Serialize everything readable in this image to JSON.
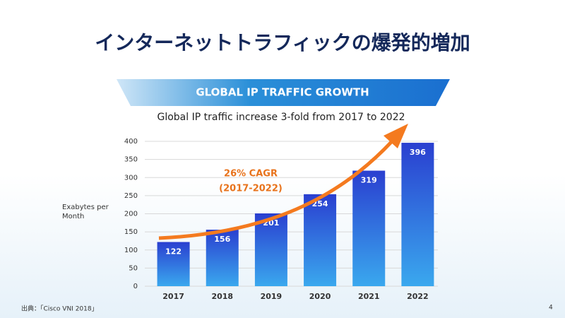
{
  "header": {
    "title": "インターネットトラフィックの爆発的増加"
  },
  "chart_data": {
    "type": "bar",
    "title": "GLOBAL IP TRAFFIC GROWTH",
    "subtitle": "Global IP traffic increase 3-fold from 2017 to 2022",
    "y_label": "Exabytes per Month",
    "annotations": [
      "26% CAGR",
      "(2017-2022)"
    ],
    "categories": [
      "2017",
      "2018",
      "2019",
      "2020",
      "2021",
      "2022"
    ],
    "values": [
      122,
      156,
      201,
      254,
      319,
      396
    ],
    "color": "#2f57d8",
    "ylim": [
      0,
      400
    ],
    "yticks": [
      0,
      50,
      100,
      150,
      200,
      250,
      300,
      350,
      400
    ],
    "grid": true
  },
  "footer": {
    "source": "出典：「Cisco VNI 2018」",
    "page": "4"
  }
}
